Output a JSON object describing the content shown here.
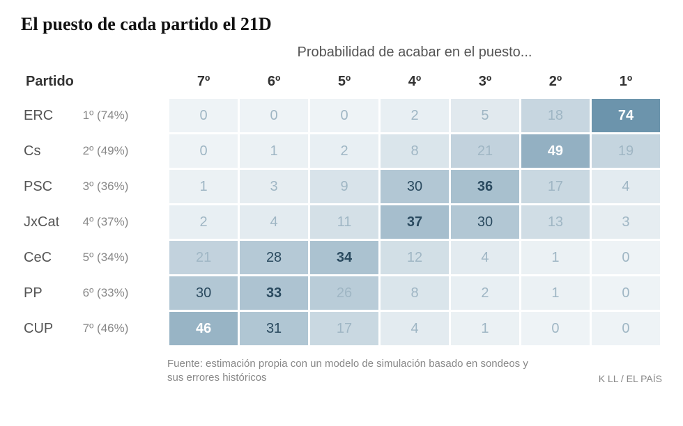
{
  "title": "El puesto de cada partido el 21D",
  "subtitle": "Probabilidad de acabar en el puesto...",
  "header": {
    "partido": "Partido",
    "positions": [
      "7º",
      "6º",
      "5º",
      "4º",
      "3º",
      "2º",
      "1º"
    ]
  },
  "heatmap": {
    "type": "heatmap",
    "color_scale": {
      "low_bg": "#eef3f6",
      "high_bg": "#6b93ab",
      "low_text": "#9fb6c4",
      "high_text": "#ffffff",
      "bold_threshold": 30
    },
    "background_color": "#ffffff"
  },
  "rows": [
    {
      "name": "ERC",
      "summary": "1º (74%)",
      "values": [
        0,
        0,
        0,
        2,
        5,
        18,
        74
      ]
    },
    {
      "name": "Cs",
      "summary": "2º (49%)",
      "values": [
        0,
        1,
        2,
        8,
        21,
        49,
        19
      ]
    },
    {
      "name": "PSC",
      "summary": "3º (36%)",
      "values": [
        1,
        3,
        9,
        30,
        36,
        17,
        4
      ]
    },
    {
      "name": "JxCat",
      "summary": "4º (37%)",
      "values": [
        2,
        4,
        11,
        37,
        30,
        13,
        3
      ]
    },
    {
      "name": "CeC",
      "summary": "5º (34%)",
      "values": [
        21,
        28,
        34,
        12,
        4,
        1,
        0
      ]
    },
    {
      "name": "PP",
      "summary": "6º (33%)",
      "values": [
        30,
        33,
        26,
        8,
        2,
        1,
        0
      ]
    },
    {
      "name": "CUP",
      "summary": "7º (46%)",
      "values": [
        46,
        31,
        17,
        4,
        1,
        0,
        0
      ]
    }
  ],
  "source": "Fuente: estimación propia con un modelo de simulación basado en sondeos y sus errores históricos",
  "credit": "K LL / EL PAÍS"
}
